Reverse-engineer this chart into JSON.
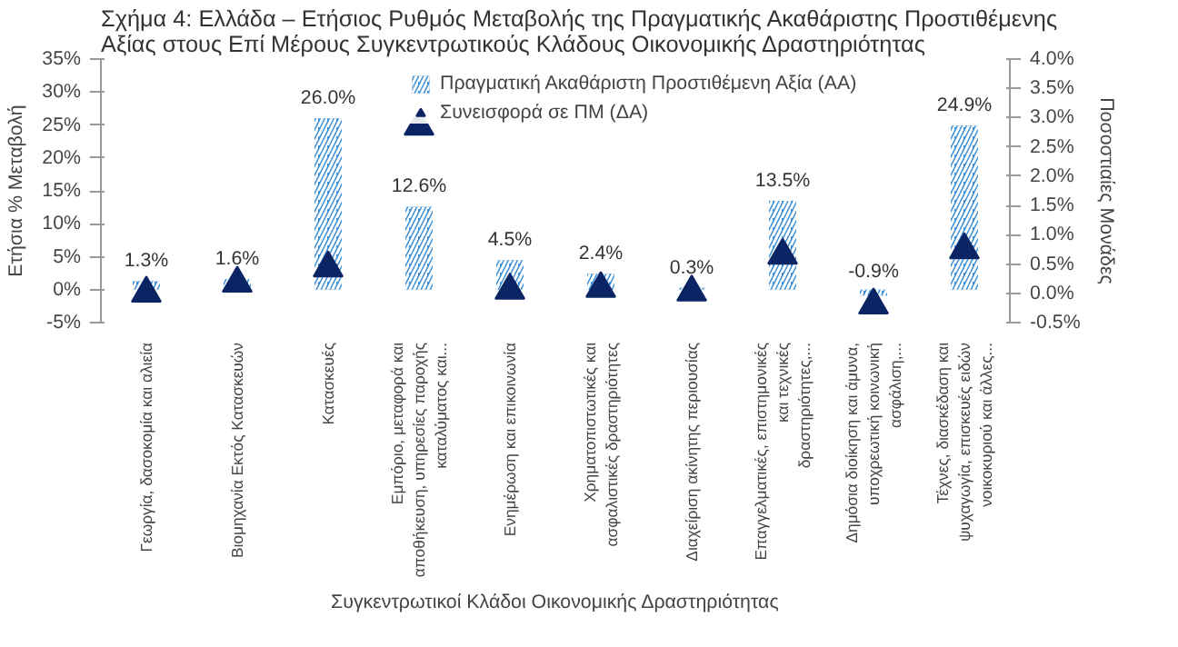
{
  "chart_data": {
    "type": "bar",
    "title": "Σχήμα 4: Ελλάδα – Ετήσιος Ρυθμός Μεταβολής της Πραγματικής Ακαθάριστης Προστιθέμενης Αξίας στους Επί Μέρους Συγκεντρωτικούς Κλάδους Οικονομικής Δραστηριότητας",
    "xlabel": "Συγκεντρωτικοί Κλάδοι Οικονομικής Δραστηριότητας",
    "ylabel": "Ετήσια % Μεταβολή",
    "y2label": "Ποσοστιαίες Μονάδες",
    "categories": [
      "Γεωργία, δασοκομία και αλιεία",
      "Βιομηχανία Εκτός Κατασκευών",
      "Κατασκευές",
      "Εμπόριο, μεταφορά και αποθήκευση, υπηρεσίες παροχής καταλύματος και...",
      "Ενημέρωση και επικοινωνία",
      "Χρηματοπιστωτικές και ασφαλιστικές δραστηριότητες",
      "Διαχείριση ακίνητης περιουσίας",
      "Επαγγελματικές, επιστημονικές και τεχνικές δραστηριότητες,...",
      "Δημόσια διοίκηση και άμυνα, υποχρεωτική κοινωνική ασφάλιση,...",
      "Τέχνες, διασκέδαση και ψυχαγωγία, επισκευές ειδών νοικοκυριού και άλλες..."
    ],
    "series": [
      {
        "name": "Πραγματική Ακαθάριστη Προστιθέμενη Αξία (ΑΑ)",
        "type": "bar",
        "color": "#3b8fd6",
        "values": [
          1.3,
          1.6,
          26.0,
          12.6,
          4.5,
          2.4,
          0.3,
          13.5,
          -0.9,
          24.9
        ],
        "value_labels": [
          "1.3%",
          "1.6%",
          "26.0%",
          "12.6%",
          "4.5%",
          "2.4%",
          "0.3%",
          "13.5%",
          "-0.9%",
          "24.9%"
        ]
      },
      {
        "name": "Συνεισφορά σε ΠΜ (ΔΑ)",
        "type": "scatter",
        "axis": "y2",
        "marker": "triangle",
        "color": "#0b2463",
        "values": [
          0.0,
          0.17,
          0.43,
          2.85,
          0.05,
          0.08,
          0.02,
          0.65,
          -0.2,
          0.74
        ]
      }
    ],
    "ylim": [
      -5,
      35
    ],
    "yticks": [
      {
        "value": -5,
        "label": "-5%"
      },
      {
        "value": 0,
        "label": "0%"
      },
      {
        "value": 5,
        "label": "5%"
      },
      {
        "value": 10,
        "label": "10%"
      },
      {
        "value": 15,
        "label": "15%"
      },
      {
        "value": 20,
        "label": "20%"
      },
      {
        "value": 25,
        "label": "25%"
      },
      {
        "value": 30,
        "label": "30%"
      },
      {
        "value": 35,
        "label": "35%"
      }
    ],
    "y2lim": [
      -0.5,
      4.0
    ],
    "y2ticks": [
      {
        "value": -0.5,
        "label": "-0.5%"
      },
      {
        "value": 0,
        "label": "0.0%"
      },
      {
        "value": 0.5,
        "label": "0.5%"
      },
      {
        "value": 1.0,
        "label": "1.0%"
      },
      {
        "value": 1.5,
        "label": "1.5%"
      },
      {
        "value": 2.0,
        "label": "2.0%"
      },
      {
        "value": 2.5,
        "label": "2.5%"
      },
      {
        "value": 3.0,
        "label": "3.0%"
      },
      {
        "value": 3.5,
        "label": "3.5%"
      },
      {
        "value": 4.0,
        "label": "4.0%"
      }
    ],
    "legend": "top right",
    "grid": false
  }
}
